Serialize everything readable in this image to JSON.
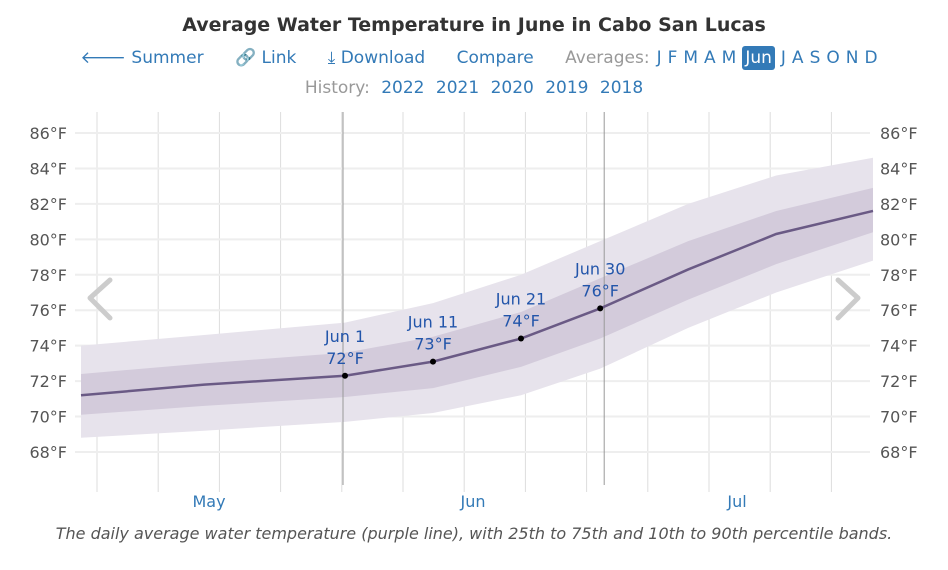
{
  "title": "Average Water Temperature in June in Cabo San Lucas",
  "nav": {
    "summer": "Summer",
    "link": "Link",
    "download": "Download",
    "compare": "Compare",
    "averages_label": "Averages:",
    "months": [
      "J",
      "F",
      "M",
      "A",
      "M",
      "Jun",
      "J",
      "A",
      "S",
      "O",
      "N",
      "D"
    ],
    "selected_month": "Jun",
    "icons": [
      "arrow-left-icon",
      "link-icon",
      "download-icon"
    ]
  },
  "history": {
    "label": "History:",
    "years": [
      "2022",
      "2021",
      "2020",
      "2019",
      "2018"
    ]
  },
  "caption": "The daily average water temperature (purple line), with 25th to 75th and 10th to 90th percentile bands.",
  "chart_data": {
    "type": "line",
    "title": "Average Water Temperature in June in Cabo San Lucas",
    "y_ticks": [
      "68°F",
      "70°F",
      "72°F",
      "74°F",
      "76°F",
      "78°F",
      "80°F",
      "82°F",
      "84°F",
      "86°F"
    ],
    "ylim": [
      66,
      87
    ],
    "x_labels": [
      "May",
      "Jun",
      "Jul"
    ],
    "x": [
      "May 2",
      "May 16",
      "Jun 1",
      "Jun 11",
      "Jun 21",
      "Jun 30",
      "Jul 10",
      "Jul 20",
      "Jul 31"
    ],
    "series": [
      {
        "key": "average",
        "values": [
          71.2,
          71.8,
          72.3,
          73.1,
          74.4,
          76.1,
          78.3,
          80.3,
          81.6
        ]
      },
      {
        "key": "p25",
        "values": [
          70.1,
          70.6,
          71.1,
          71.6,
          72.8,
          74.4,
          76.6,
          78.6,
          80.4
        ]
      },
      {
        "key": "p75",
        "values": [
          72.4,
          73.0,
          73.6,
          74.5,
          75.9,
          77.8,
          79.9,
          81.6,
          82.9
        ]
      },
      {
        "key": "p10",
        "values": [
          68.8,
          69.2,
          69.7,
          70.2,
          71.2,
          72.7,
          75.0,
          77.0,
          78.8
        ]
      },
      {
        "key": "p90",
        "values": [
          74.0,
          74.6,
          75.3,
          76.4,
          78.0,
          79.9,
          82.0,
          83.6,
          84.6
        ]
      }
    ],
    "annotations": [
      {
        "date": "Jun 1",
        "label": "72°F",
        "value": 72.3
      },
      {
        "date": "Jun 11",
        "label": "73°F",
        "value": 73.1
      },
      {
        "date": "Jun 21",
        "label": "74°F",
        "value": 74.4
      },
      {
        "date": "Jun 30",
        "label": "76°F",
        "value": 76.1
      }
    ],
    "colors": {
      "line": "#6a5a85",
      "inner_band": "#d3cbdb",
      "outer_band": "#e7e3ec"
    },
    "grid": true
  }
}
